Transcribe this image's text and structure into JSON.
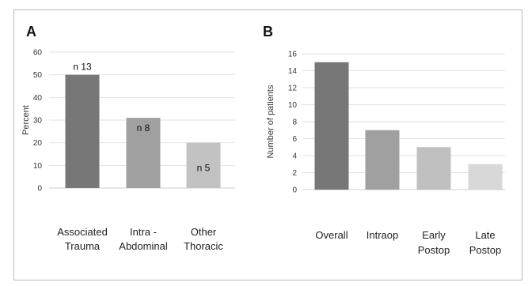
{
  "chart_data": [
    {
      "panel": "A",
      "type": "bar",
      "categories": [
        [
          "Associated",
          "Trauma"
        ],
        [
          "Intra -",
          "Abdominal"
        ],
        [
          "Other",
          "Thoracic"
        ]
      ],
      "values": [
        50,
        31,
        20
      ],
      "data_labels": [
        "n 13",
        "n 8",
        "n 5"
      ],
      "ylabel": "Percent",
      "ylim": [
        0,
        60
      ],
      "yticks": [
        0,
        10,
        20,
        30,
        40,
        50,
        60
      ],
      "grid": true,
      "colors": [
        "#777777",
        "#a0a0a0",
        "#c2c2c2"
      ]
    },
    {
      "panel": "B",
      "type": "bar",
      "categories": [
        [
          "Overall"
        ],
        [
          "Intraop"
        ],
        [
          "Early",
          "Postop"
        ],
        [
          "Late",
          "Postop"
        ]
      ],
      "values": [
        15,
        7,
        5,
        3
      ],
      "ylabel": "Number of patients",
      "ylim": [
        0,
        16
      ],
      "yticks": [
        0,
        2,
        4,
        6,
        8,
        10,
        12,
        14,
        16
      ],
      "grid": true,
      "colors": [
        "#777777",
        "#a0a0a0",
        "#c0c0c0",
        "#d8d8d8"
      ]
    }
  ]
}
